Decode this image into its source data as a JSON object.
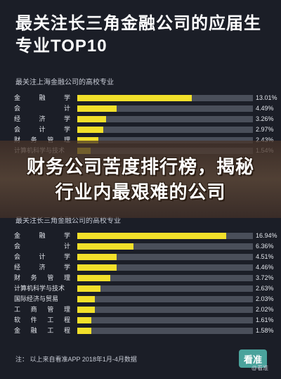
{
  "title": "最关注长三角金融公司的应届生专业TOP10",
  "banner": "财务公司苦度排行榜，揭秘行业内最艰难的公司",
  "footer": "注：   以上来自看准APP 2018年1月-4月数据",
  "brand": {
    "logo": "看准",
    "small": "@看准"
  },
  "colors": {
    "bar": "#f2e02a",
    "track": "#4a4f5a",
    "background": "#1b1e27"
  },
  "chart_data": [
    {
      "type": "bar",
      "title": "最关注上海金融公司的高校专业",
      "categories": [
        "金融学",
        "会计",
        "经济学",
        "会计学",
        "财务管理",
        "计算机科学与技术"
      ],
      "values": [
        13.01,
        4.49,
        3.26,
        2.97,
        2.43,
        1.54
      ],
      "value_labels": [
        "13.01%",
        "4.49%",
        "3.26%",
        "2.97%",
        "2.43%",
        "1.54%"
      ],
      "xlim": [
        0,
        20
      ]
    },
    {
      "type": "bar",
      "title": "最关注长三角金融公司的高校专业",
      "categories": [
        "金融学",
        "会计",
        "会计学",
        "经济学",
        "财务管理",
        "计算机科学与技术",
        "国际经济与贸易",
        "工商管理",
        "软件工程",
        "金融工程"
      ],
      "values": [
        16.94,
        6.36,
        4.51,
        4.46,
        3.72,
        2.63,
        2.03,
        2.02,
        1.61,
        1.58
      ],
      "value_labels": [
        "16.94%",
        "6.36%",
        "4.51%",
        "4.46%",
        "3.72%",
        "2.63%",
        "2.03%",
        "2.02%",
        "1.61%",
        "1.58%"
      ],
      "xlim": [
        0,
        20
      ]
    }
  ]
}
